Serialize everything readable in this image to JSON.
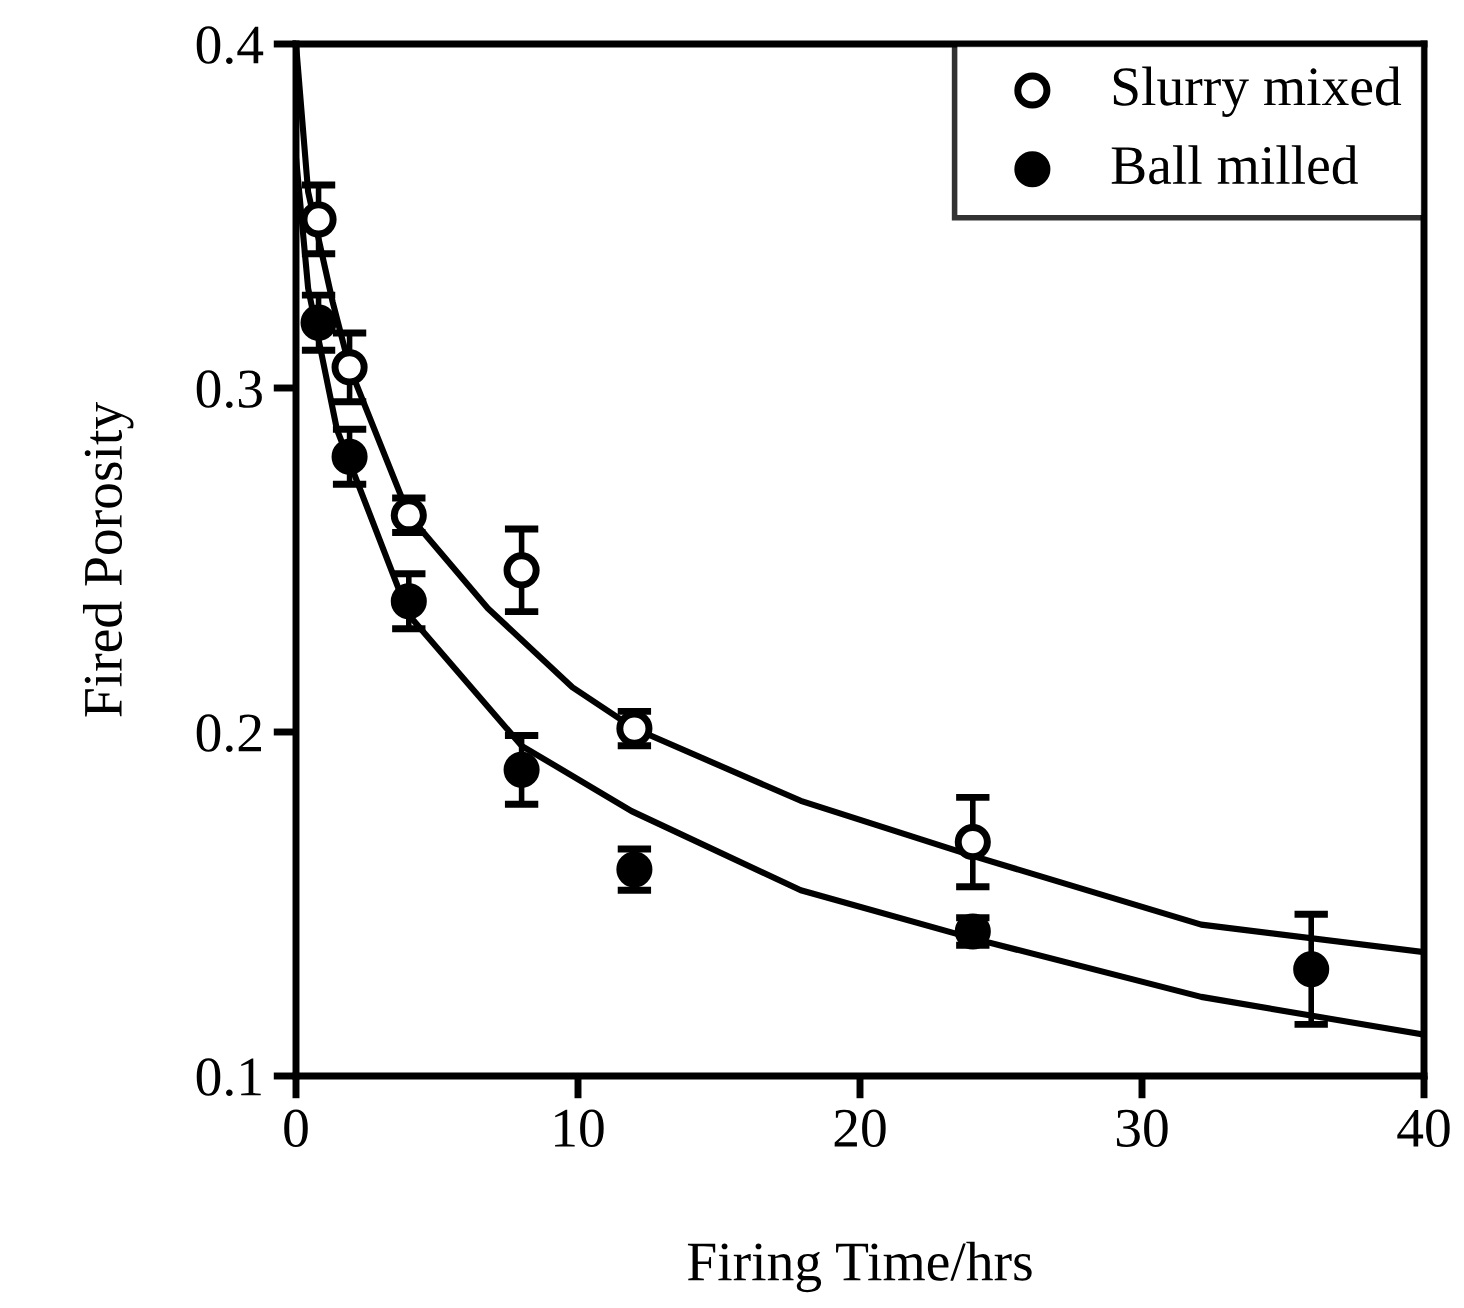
{
  "chart_data": {
    "type": "scatter",
    "xlabel": "Firing Time/hrs",
    "ylabel": "Fired Porosity",
    "xlim": [
      0,
      40
    ],
    "xticks": [
      0,
      10,
      20,
      30,
      40
    ],
    "ylim": [
      0.1,
      0.4
    ],
    "yticks": [
      0.1,
      0.2,
      0.3,
      0.4
    ],
    "grid": false,
    "legend": "top right",
    "marker": "circle",
    "series": [
      {
        "name": "Slurry mixed",
        "color": "#ffffff",
        "x": [
          0.8,
          1.9,
          4,
          8,
          12,
          24
        ],
        "values": [
          0.349,
          0.306,
          0.263,
          0.247,
          0.201,
          0.168
        ],
        "errors": [
          0.01,
          0.01,
          0.005,
          0.012,
          0.005,
          0.013
        ]
      },
      {
        "name": "Ball milled",
        "color": "#000000",
        "x": [
          0.8,
          1.9,
          4,
          8,
          12,
          24,
          36
        ],
        "values": [
          0.319,
          0.28,
          0.238,
          0.189,
          0.16,
          0.142,
          0.131
        ],
        "errors": [
          0.008,
          0.008,
          0.008,
          0.01,
          0.006,
          0.004,
          0.016
        ]
      },
      {
        "type": "line",
        "color": "#000000",
        "marker": "none",
        "x": [
          0,
          0.43,
          1.3,
          1.9,
          4,
          6.8,
          9.8,
          12,
          17.9,
          24,
          32.1,
          40
        ],
        "values": [
          0.4,
          0.357,
          0.325,
          0.306,
          0.263,
          0.236,
          0.213,
          0.201,
          0.18,
          0.164,
          0.144,
          0.136
        ]
      },
      {
        "type": "line",
        "color": "#000000",
        "marker": "none",
        "x": [
          0,
          0.43,
          1.45,
          4,
          8,
          11.9,
          17.9,
          24,
          32.1,
          40
        ],
        "values": [
          0.367,
          0.329,
          0.288,
          0.234,
          0.196,
          0.177,
          0.154,
          0.14,
          0.123,
          0.112
        ]
      }
    ]
  }
}
